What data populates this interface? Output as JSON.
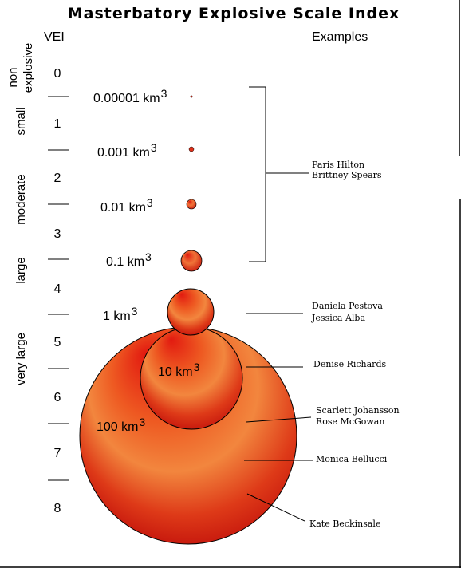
{
  "title": "Masterbatory Explosive Scale Index",
  "headers": {
    "vei": "VEI",
    "examples": "Examples"
  },
  "vei_levels": [
    "0",
    "1",
    "2",
    "3",
    "4",
    "5",
    "6",
    "7",
    "8"
  ],
  "categories": {
    "non_explosive": [
      "non",
      "explosive"
    ],
    "small": "small",
    "moderate": "moderate",
    "large": "large",
    "very_large": "very large"
  },
  "volumes": [
    {
      "value": "0.00001 km",
      "exp": "3"
    },
    {
      "value": "0.001 km",
      "exp": "3"
    },
    {
      "value": "0.01 km",
      "exp": "3"
    },
    {
      "value": "0.1 km",
      "exp": "3"
    },
    {
      "value": "1 km",
      "exp": "3"
    },
    {
      "value": "10 km",
      "exp": "3"
    },
    {
      "value": "100 km",
      "exp": "3"
    }
  ],
  "examples": {
    "group_small": [
      "Paris Hilton",
      "Brittney Spears"
    ],
    "vei5": [
      "Daniela Pestova",
      "Jessica Alba"
    ],
    "vei6": [
      "Denise Richards"
    ],
    "vei7": [
      "Scarlett Johansson",
      "Rose McGowan"
    ],
    "vei8": [
      "Monica Bellucci"
    ],
    "vei8_plus": [
      "Kate Beckinsale"
    ]
  },
  "colors": {
    "sphere_light": "#ff9a55",
    "sphere_mid": "#ea3a1c",
    "sphere_dark": "#c5140b",
    "outline": "#000000",
    "border": "#000000"
  }
}
